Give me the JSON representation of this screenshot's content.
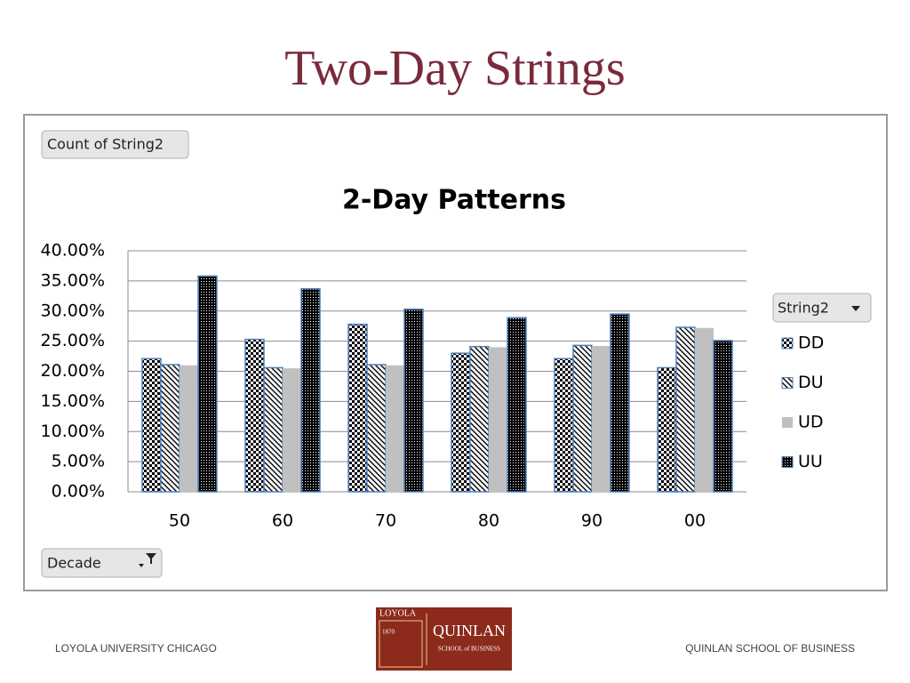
{
  "slide": {
    "title": "Two-Day Strings",
    "footer_left": "LOYOLA UNIVERSITY CHICAGO",
    "footer_right": "QUINLAN SCHOOL OF BUSINESS",
    "logo": {
      "top": "LOYOLA",
      "year": "1870",
      "name": "QUINLAN",
      "sub": "SCHOOL of BUSINESS"
    }
  },
  "pivot": {
    "value_button": "Count of String2",
    "legend_button": "String2",
    "axis_button": "Decade"
  },
  "chart_data": {
    "type": "bar",
    "title": "2-Day Patterns",
    "categories": [
      "50",
      "60",
      "70",
      "80",
      "90",
      "00"
    ],
    "series": [
      {
        "name": "DD",
        "color": "#000000",
        "pattern": "checker",
        "values": [
          22.1,
          25.3,
          27.8,
          23.0,
          22.1,
          20.6
        ]
      },
      {
        "name": "DU",
        "color": "#000000",
        "pattern": "diagonal",
        "values": [
          21.1,
          20.6,
          21.1,
          24.1,
          24.3,
          27.3
        ]
      },
      {
        "name": "UD",
        "color": "#c0c0c0",
        "pattern": "solid",
        "values": [
          21.0,
          20.5,
          21.0,
          24.0,
          24.2,
          27.2
        ]
      },
      {
        "name": "UU",
        "color": "#000000",
        "pattern": "dots",
        "values": [
          35.8,
          33.7,
          30.3,
          28.9,
          29.5,
          25.1
        ]
      }
    ],
    "ylim": [
      0,
      40
    ],
    "yticks": [
      {
        "value": 0,
        "label": "0.00%"
      },
      {
        "value": 5,
        "label": "5.00%"
      },
      {
        "value": 10,
        "label": "10.00%"
      },
      {
        "value": 15,
        "label": "15.00%"
      },
      {
        "value": 20,
        "label": "20.00%"
      },
      {
        "value": 25,
        "label": "25.00%"
      },
      {
        "value": 30,
        "label": "30.00%"
      },
      {
        "value": 35,
        "label": "35.00%"
      },
      {
        "value": 40,
        "label": "40.00%"
      }
    ],
    "grid": true,
    "legend": "right"
  }
}
